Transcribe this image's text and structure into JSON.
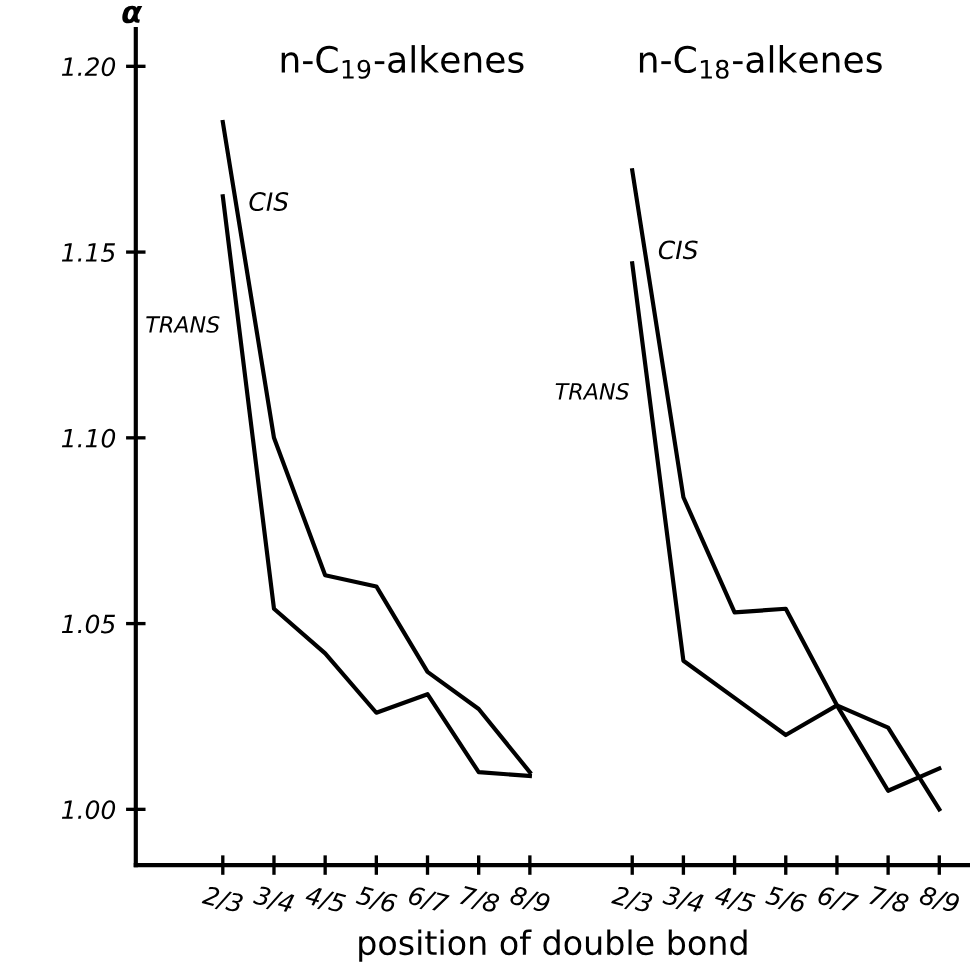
{
  "chart_data": {
    "type": "line",
    "ylabel": "α",
    "xlabel": "position of double bond",
    "annotations": [
      "n-C$_{19}$-alkenes",
      "n-C$_{18}$-alkenes"
    ],
    "categories": [
      "2/3",
      "3/4",
      "4/5",
      "5/6",
      "6/7",
      "7/8",
      "8/9",
      null,
      "2/3",
      "3/4",
      "4/5",
      "5/6",
      "6/7",
      "7/8",
      "8/9"
    ],
    "series": [
      {
        "name": "CIS",
        "color": "#000000",
        "values": [
          1.185,
          1.1,
          1.063,
          1.06,
          1.037,
          1.027,
          1.01,
          null,
          null,
          null,
          null,
          null,
          null,
          null,
          null
        ]
      },
      {
        "name": "TRANS",
        "color": "#000000",
        "values": [
          1.165,
          1.054,
          1.042,
          1.026,
          1.031,
          1.01,
          1.009,
          null,
          null,
          null,
          null,
          null,
          null,
          null,
          null
        ]
      },
      {
        "name": "CIS",
        "color": "#000000",
        "values": [
          null,
          null,
          null,
          null,
          null,
          null,
          null,
          null,
          1.172,
          1.084,
          1.053,
          1.054,
          1.028,
          1.005,
          1.011
        ]
      },
      {
        "name": "TRANS",
        "color": "#000000",
        "values": [
          null,
          null,
          null,
          null,
          null,
          null,
          null,
          null,
          1.147,
          1.04,
          1.03,
          1.02,
          1.028,
          1.022,
          1.0
        ]
      }
    ],
    "ylim": [
      0.985,
      1.21
    ],
    "yticks": [
      {
        "value": 1.0,
        "label": "1.00"
      },
      {
        "value": 1.05,
        "label": "1.05"
      },
      {
        "value": 1.1,
        "label": "1.10"
      },
      {
        "value": 1.15,
        "label": "1.15"
      },
      {
        "value": 1.2,
        "label": "1.20"
      }
    ],
    "grid": false,
    "legend": false,
    "marker": "none",
    "line_style": "solid"
  }
}
